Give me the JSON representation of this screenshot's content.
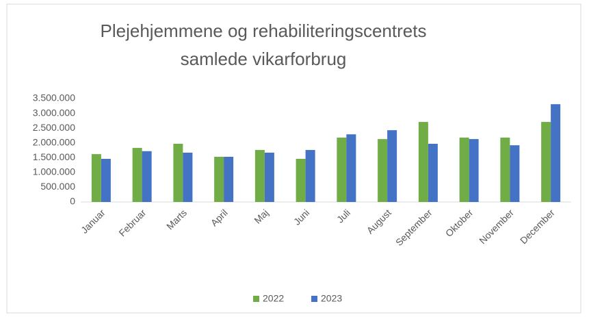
{
  "chart_data": {
    "type": "bar",
    "title": [
      "Plejehjemmene og rehabiliteringscentrets",
      "samlede vikarforbrug"
    ],
    "categories": [
      "Januar",
      "Februar",
      "Marts",
      "April",
      "Maj",
      "Juni",
      "Juli",
      "August",
      "September",
      "Oktober",
      "November",
      "December"
    ],
    "series": [
      {
        "name": "2022",
        "color": "#70ad47",
        "values": [
          1620000,
          1830000,
          1970000,
          1530000,
          1760000,
          1460000,
          2180000,
          2130000,
          2710000,
          2180000,
          2180000,
          2710000
        ]
      },
      {
        "name": "2023",
        "color": "#4472c4",
        "values": [
          1460000,
          1720000,
          1670000,
          1530000,
          1670000,
          1760000,
          2290000,
          2430000,
          1970000,
          2130000,
          1920000,
          3310000
        ]
      }
    ],
    "ylim": [
      0,
      3500000
    ],
    "yticks": [
      0,
      {
        "value": 500000,
        "label": "500.000"
      },
      {
        "value": 1000000,
        "label": "1.000.000"
      },
      {
        "value": 1500000,
        "label": "1.500.000"
      },
      {
        "value": 2000000,
        "label": "2.000.000"
      },
      {
        "value": 2500000,
        "label": "2.500.000"
      },
      {
        "value": 3000000,
        "label": "3.000.000"
      },
      {
        "value": 3500000,
        "label": "3.500.000"
      }
    ],
    "legend": "bottom"
  }
}
